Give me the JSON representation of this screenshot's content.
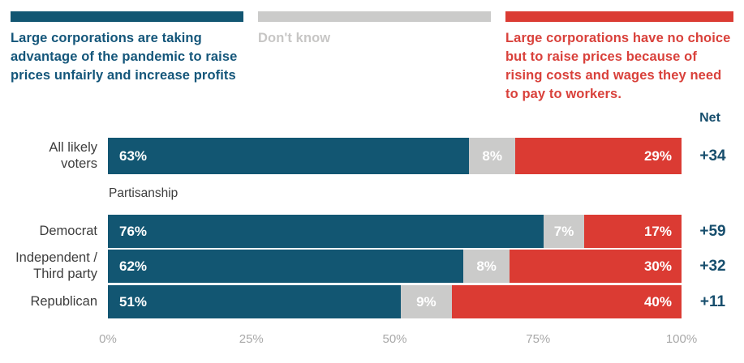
{
  "colors": {
    "agree_bar": "#125672",
    "dont_know_bar": "#CBCBCA",
    "disagree_bar": "#DB3B33",
    "agree_text": "#14567A",
    "dont_know_text": "#C7C6C5",
    "disagree_text": "#D9413B",
    "net_text": "#174E6D",
    "row_label_text": "#3D3D3D",
    "axis_text": "#A9A9A9",
    "bar_value_text": "#FFFFFF"
  },
  "legend": [
    {
      "label": "Large corporations are taking advantage of the pandemic to raise prices unfairly and increase profits",
      "swatch_color": "#125672",
      "text_color": "#14567A"
    },
    {
      "label": "Don't know",
      "swatch_color": "#CBCBCA",
      "text_color": "#C7C6C5"
    },
    {
      "label": "Large corporations have no choice but to raise prices because of rising costs and wages they need to pay to workers.",
      "swatch_color": "#DB3B33",
      "text_color": "#D9413B"
    }
  ],
  "net_label": "Net",
  "section_label": "Partisanship",
  "chart_data": {
    "type": "bar",
    "orientation": "horizontal",
    "stacked": true,
    "grid": false,
    "legend_position": "top",
    "xlim": [
      0,
      100
    ],
    "x_ticks": [
      "0%",
      "25%",
      "50%",
      "75%",
      "100%"
    ],
    "x_tick_values": [
      0,
      25,
      50,
      75,
      100
    ],
    "categories": [
      "All likely voters",
      "Democrat",
      "Independent / Third party",
      "Republican"
    ],
    "series": [
      {
        "name": "Large corporations are taking advantage of the pandemic to raise prices unfairly and increase profits",
        "values": [
          63,
          76,
          62,
          51
        ],
        "color": "#125672"
      },
      {
        "name": "Don't know",
        "values": [
          8,
          7,
          8,
          9
        ],
        "color": "#CBCBCA"
      },
      {
        "name": "Large corporations have no choice but to raise prices because of rising costs and wages they need to pay to workers.",
        "values": [
          29,
          17,
          30,
          40
        ],
        "color": "#DB3B33"
      }
    ],
    "value_labels": [
      [
        "63%",
        "8%",
        "29%"
      ],
      [
        "76%",
        "7%",
        "17%"
      ],
      [
        "62%",
        "8%",
        "30%"
      ],
      [
        "51%",
        "9%",
        "40%"
      ]
    ],
    "net_values": [
      "+34",
      "+59",
      "+32",
      "+11"
    ]
  }
}
